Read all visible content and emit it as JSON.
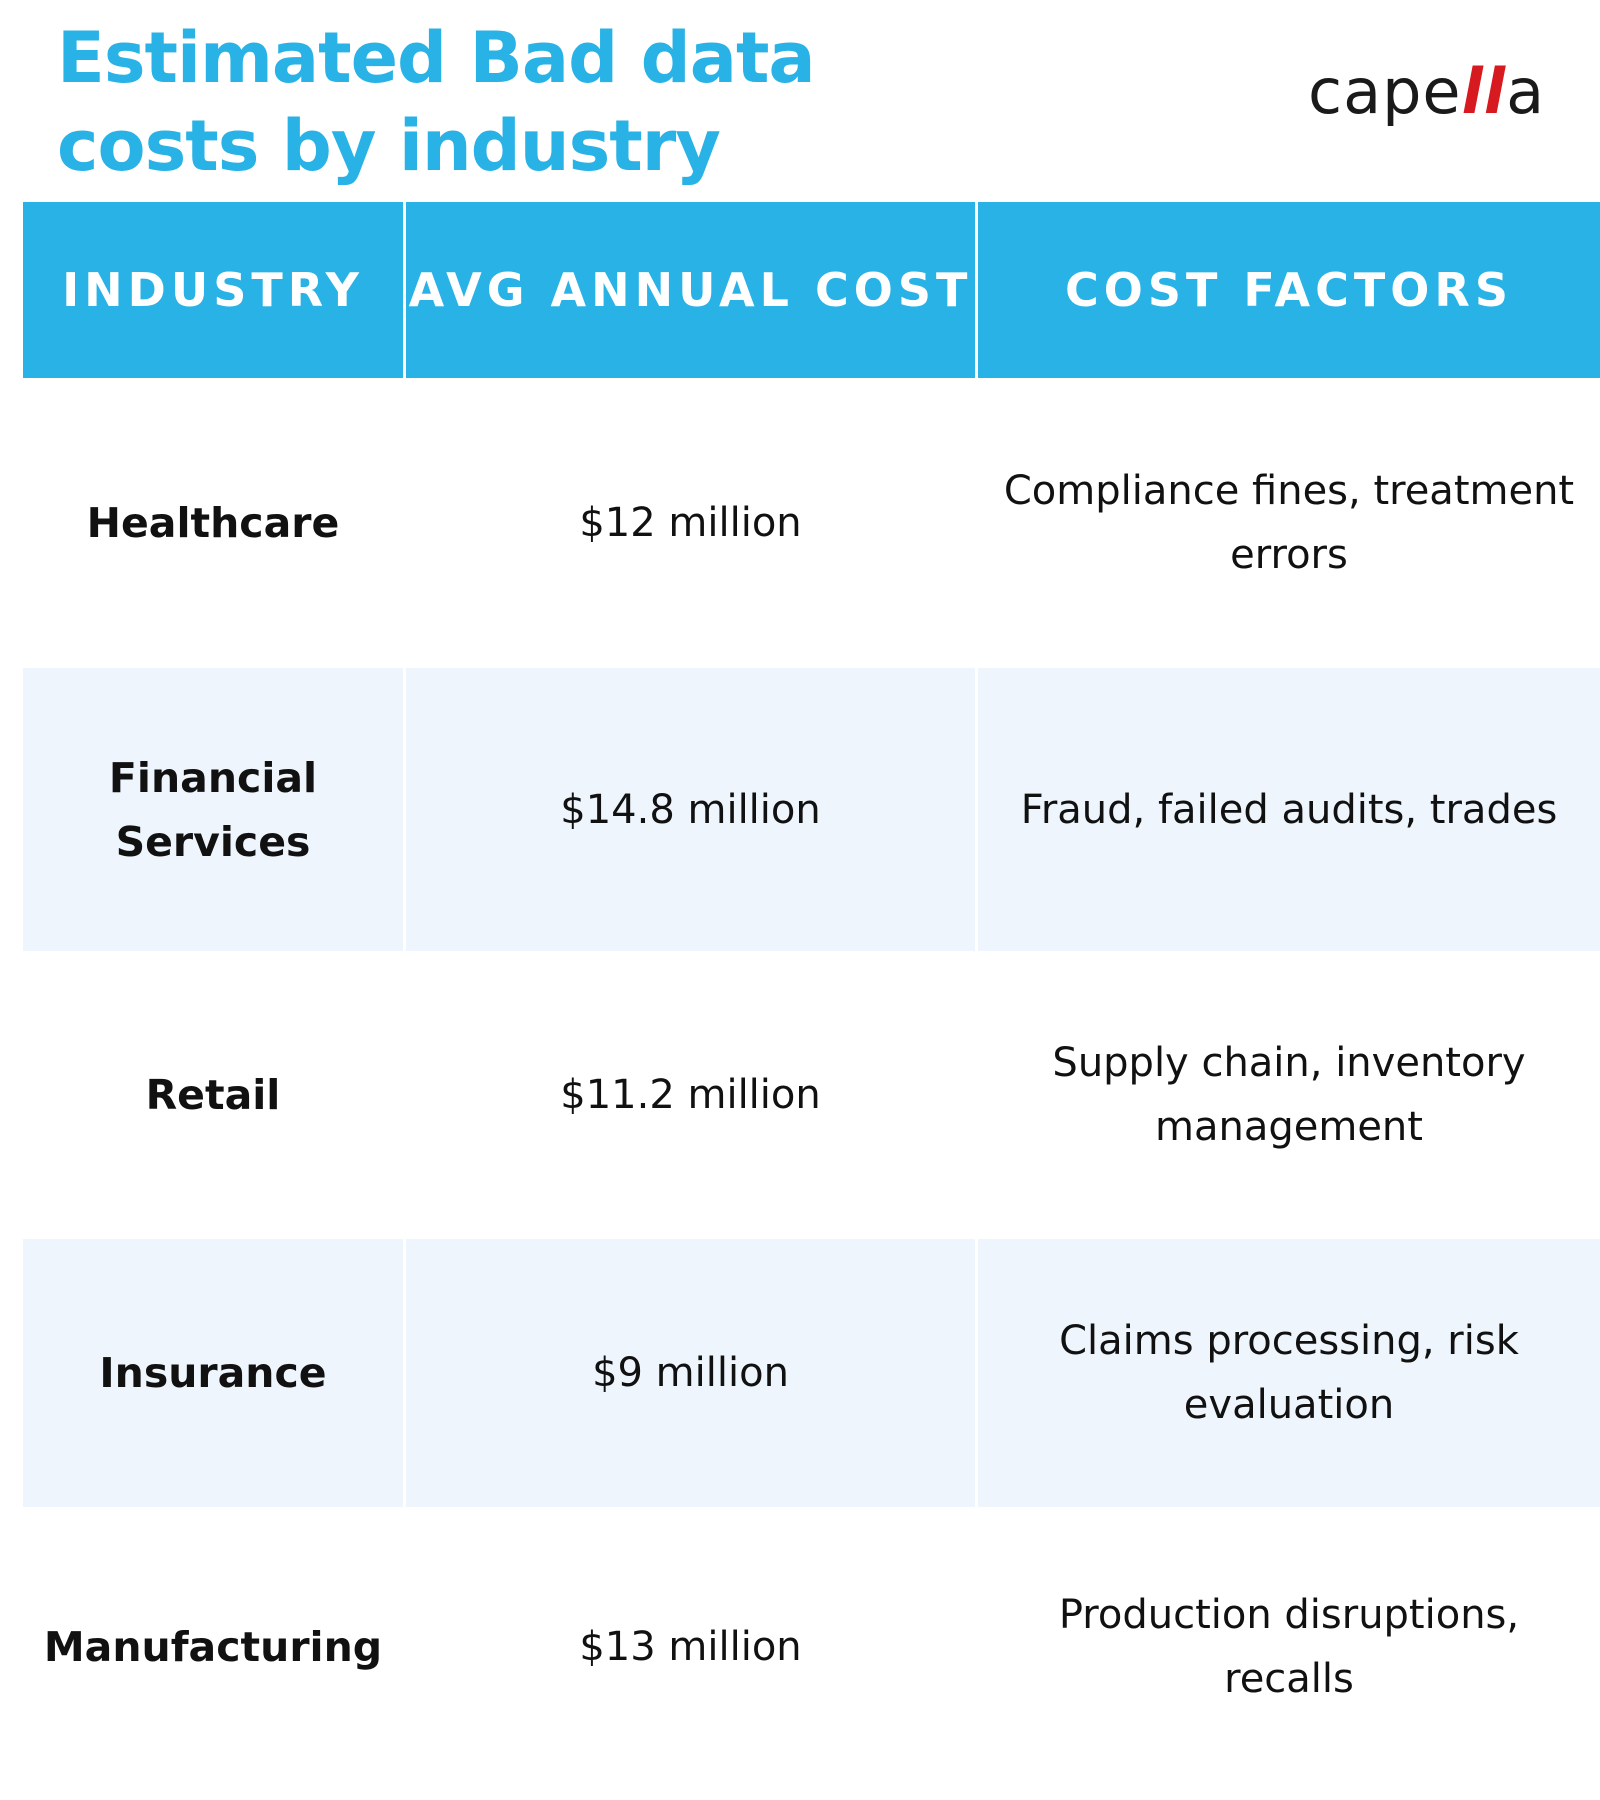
{
  "title": "Estimated Bad data costs by industry",
  "logo": {
    "text_before": "cape",
    "text_accent": "ll",
    "text_after": "a"
  },
  "colors": {
    "header_blue": "#29b2e6",
    "alt_row": "#eef5fd",
    "logo_accent": "#d71920"
  },
  "table": {
    "columns": [
      "INDUSTRY",
      "AVG ANNUAL COST",
      "COST FACTORS"
    ],
    "rows": [
      {
        "industry": "Healthcare",
        "cost": "$12 million",
        "factors": "Compliance fines, treatment errors"
      },
      {
        "industry": "Financial Services",
        "cost": "$14.8 million",
        "factors": "Fraud, failed audits, trades"
      },
      {
        "industry": "Retail",
        "cost": "$11.2 million",
        "factors": "Supply chain, inventory management"
      },
      {
        "industry": "Insurance",
        "cost": "$9 million",
        "factors": "Claims processing, risk evaluation"
      },
      {
        "industry": "Manufacturing",
        "cost": "$13 million",
        "factors": "Production disruptions, recalls"
      }
    ]
  }
}
